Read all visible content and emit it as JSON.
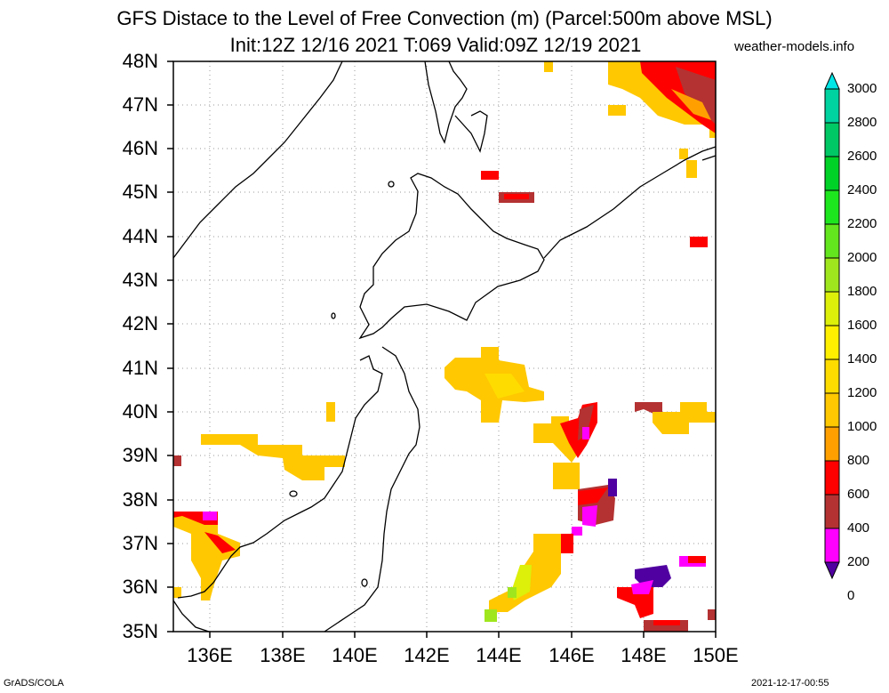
{
  "title_line1": "GFS Distace to the Level of Free Convection (m) (Parcel:500m above MSL)",
  "title_line2": "Init:12Z 12/16 2021 T:069 Valid:09Z 12/19 2021",
  "site": "weather-models.info",
  "lat_labels": [
    "48N",
    "47N",
    "46N",
    "45N",
    "44N",
    "43N",
    "42N",
    "41N",
    "40N",
    "39N",
    "38N",
    "37N",
    "36N",
    "35N"
  ],
  "lon_labels": [
    "136E",
    "138E",
    "140E",
    "142E",
    "144E",
    "146E",
    "148E",
    "150E"
  ],
  "colorbar": {
    "levels": [
      "3000",
      "2800",
      "2600",
      "2400",
      "2200",
      "2000",
      "1800",
      "1600",
      "1400",
      "1200",
      "1000",
      "800",
      "600",
      "400",
      "200",
      "0"
    ],
    "colors": [
      "#00e6e6",
      "#00d2a0",
      "#00c864",
      "#00d228",
      "#1ee61e",
      "#64e61e",
      "#a0e61e",
      "#dcf00a",
      "#fff000",
      "#ffdc00",
      "#ffc800",
      "#ffa000",
      "#ff0000",
      "#b43232",
      "#ff00ff",
      "#5000a0"
    ]
  },
  "footer_left": "GrADS/COLA",
  "footer_right": "2021-12-17-00:55"
}
